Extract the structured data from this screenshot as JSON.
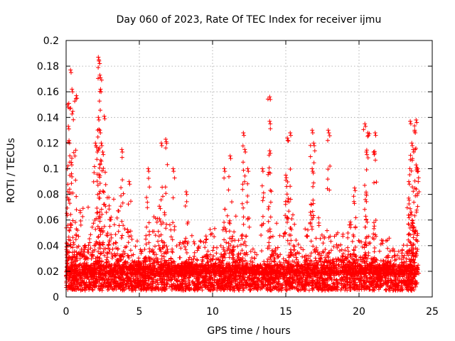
{
  "chart_data": {
    "type": "scatter",
    "title": "Day 060 of 2023, Rate Of TEC Index for receiver ijmu",
    "xlabel": "GPS time / hours",
    "ylabel": "ROTI / TECUs",
    "xlim": [
      0,
      25
    ],
    "ylim": [
      0,
      0.2
    ],
    "xticks": [
      0,
      5,
      10,
      15,
      20,
      25
    ],
    "xtick_labels": [
      "0",
      "5",
      "10",
      "15",
      "20",
      "25"
    ],
    "yticks": [
      0,
      0.02,
      0.04,
      0.06,
      0.08,
      0.1,
      0.12,
      0.14,
      0.16,
      0.18,
      0.2
    ],
    "ytick_labels": [
      "0",
      "0.02",
      "0.04",
      "0.06",
      "0.08",
      "0.1",
      "0.12",
      "0.14",
      "0.16",
      "0.18",
      "0.2"
    ],
    "grid": true,
    "marker": "+",
    "color": "#ff0000",
    "data_x_range": [
      0,
      24
    ],
    "envelope": [
      {
        "x": 0.0,
        "y": 0.07
      },
      {
        "x": 0.3,
        "y": 0.105
      },
      {
        "x": 0.6,
        "y": 0.06
      },
      {
        "x": 1.0,
        "y": 0.075
      },
      {
        "x": 1.5,
        "y": 0.07
      },
      {
        "x": 2.0,
        "y": 0.065
      },
      {
        "x": 2.5,
        "y": 0.09
      },
      {
        "x": 3.0,
        "y": 0.085
      },
      {
        "x": 3.5,
        "y": 0.07
      },
      {
        "x": 4.0,
        "y": 0.055
      },
      {
        "x": 4.5,
        "y": 0.05
      },
      {
        "x": 5.0,
        "y": 0.045
      },
      {
        "x": 5.5,
        "y": 0.055
      },
      {
        "x": 6.0,
        "y": 0.065
      },
      {
        "x": 6.5,
        "y": 0.075
      },
      {
        "x": 7.0,
        "y": 0.06
      },
      {
        "x": 7.5,
        "y": 0.04
      },
      {
        "x": 8.0,
        "y": 0.045
      },
      {
        "x": 8.5,
        "y": 0.05
      },
      {
        "x": 9.0,
        "y": 0.04
      },
      {
        "x": 9.5,
        "y": 0.055
      },
      {
        "x": 10.0,
        "y": 0.055
      },
      {
        "x": 10.5,
        "y": 0.05
      },
      {
        "x": 11.0,
        "y": 0.075
      },
      {
        "x": 11.5,
        "y": 0.065
      },
      {
        "x": 12.0,
        "y": 0.055
      },
      {
        "x": 12.5,
        "y": 0.04
      },
      {
        "x": 13.0,
        "y": 0.035
      },
      {
        "x": 13.5,
        "y": 0.03
      },
      {
        "x": 14.0,
        "y": 0.06
      },
      {
        "x": 14.5,
        "y": 0.065
      },
      {
        "x": 15.0,
        "y": 0.05
      },
      {
        "x": 15.5,
        "y": 0.065
      },
      {
        "x": 16.0,
        "y": 0.045
      },
      {
        "x": 16.5,
        "y": 0.06
      },
      {
        "x": 17.0,
        "y": 0.065
      },
      {
        "x": 17.5,
        "y": 0.06
      },
      {
        "x": 18.0,
        "y": 0.05
      },
      {
        "x": 18.5,
        "y": 0.055
      },
      {
        "x": 19.0,
        "y": 0.055
      },
      {
        "x": 19.5,
        "y": 0.06
      },
      {
        "x": 20.0,
        "y": 0.05
      },
      {
        "x": 20.5,
        "y": 0.06
      },
      {
        "x": 21.0,
        "y": 0.05
      },
      {
        "x": 21.5,
        "y": 0.045
      },
      {
        "x": 22.0,
        "y": 0.055
      },
      {
        "x": 22.5,
        "y": 0.04
      },
      {
        "x": 23.0,
        "y": 0.04
      },
      {
        "x": 23.5,
        "y": 0.095
      },
      {
        "x": 24.0,
        "y": 0.09
      }
    ],
    "peaks": [
      {
        "x": 0.1,
        "y": 0.15
      },
      {
        "x": 0.15,
        "y": 0.133
      },
      {
        "x": 0.2,
        "y": 0.122
      },
      {
        "x": 0.3,
        "y": 0.177
      },
      {
        "x": 0.4,
        "y": 0.162
      },
      {
        "x": 0.7,
        "y": 0.157
      },
      {
        "x": 0.35,
        "y": 0.105
      },
      {
        "x": 2.2,
        "y": 0.187
      },
      {
        "x": 2.25,
        "y": 0.184
      },
      {
        "x": 2.3,
        "y": 0.173
      },
      {
        "x": 2.35,
        "y": 0.162
      },
      {
        "x": 2.2,
        "y": 0.14
      },
      {
        "x": 2.3,
        "y": 0.13
      },
      {
        "x": 2.4,
        "y": 0.12
      },
      {
        "x": 2.5,
        "y": 0.113
      },
      {
        "x": 2.6,
        "y": 0.141
      },
      {
        "x": 2.0,
        "y": 0.12
      },
      {
        "x": 3.8,
        "y": 0.115
      },
      {
        "x": 4.3,
        "y": 0.09
      },
      {
        "x": 5.6,
        "y": 0.1
      },
      {
        "x": 6.5,
        "y": 0.12
      },
      {
        "x": 6.8,
        "y": 0.123
      },
      {
        "x": 7.3,
        "y": 0.1
      },
      {
        "x": 8.2,
        "y": 0.082
      },
      {
        "x": 10.8,
        "y": 0.1
      },
      {
        "x": 11.2,
        "y": 0.11
      },
      {
        "x": 12.1,
        "y": 0.128
      },
      {
        "x": 12.2,
        "y": 0.115
      },
      {
        "x": 12.4,
        "y": 0.1
      },
      {
        "x": 13.4,
        "y": 0.1
      },
      {
        "x": 13.9,
        "y": 0.156
      },
      {
        "x": 13.9,
        "y": 0.137
      },
      {
        "x": 13.9,
        "y": 0.114
      },
      {
        "x": 15.1,
        "y": 0.124
      },
      {
        "x": 15.3,
        "y": 0.128
      },
      {
        "x": 15.0,
        "y": 0.095
      },
      {
        "x": 16.8,
        "y": 0.13
      },
      {
        "x": 16.9,
        "y": 0.12
      },
      {
        "x": 16.8,
        "y": 0.1
      },
      {
        "x": 17.9,
        "y": 0.13
      },
      {
        "x": 20.4,
        "y": 0.135
      },
      {
        "x": 20.6,
        "y": 0.128
      },
      {
        "x": 21.1,
        "y": 0.128
      },
      {
        "x": 20.5,
        "y": 0.113
      },
      {
        "x": 21.0,
        "y": 0.113
      },
      {
        "x": 19.7,
        "y": 0.085
      },
      {
        "x": 23.5,
        "y": 0.137
      },
      {
        "x": 23.6,
        "y": 0.12
      },
      {
        "x": 23.9,
        "y": 0.138
      },
      {
        "x": 23.8,
        "y": 0.13
      },
      {
        "x": 23.7,
        "y": 0.115
      },
      {
        "x": 23.9,
        "y": 0.103
      },
      {
        "x": 23.4,
        "y": 0.09
      },
      {
        "x": 24.0,
        "y": 0.1
      }
    ],
    "baseline": {
      "median": 0.018,
      "floor": 0.005
    }
  }
}
